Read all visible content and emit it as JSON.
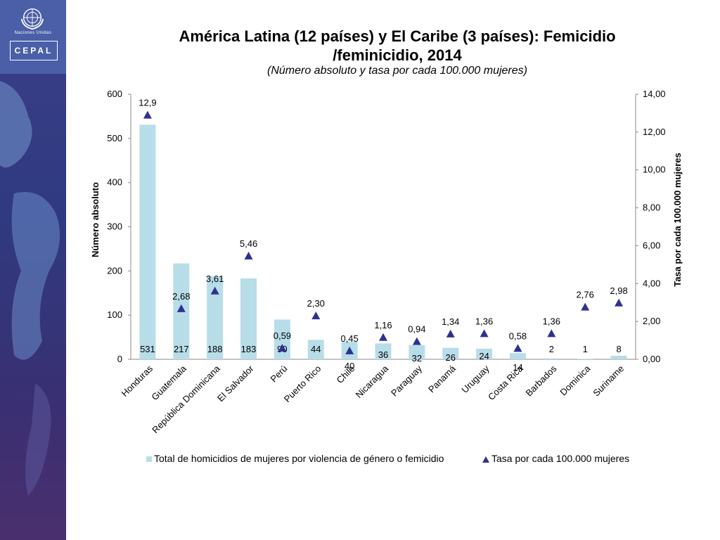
{
  "branding": {
    "un_text": "Naciones Unidas",
    "cepal_text": "CEPAL"
  },
  "colors": {
    "bar": "#b7dde8",
    "marker": "#2e3192",
    "sidebar": "#3b3f86"
  },
  "chart_data": {
    "type": "bar",
    "title": "América Latina (12 países) y El Caribe (3 países): Femicidio /feminicidio, 2014",
    "title_line1": "América Latina (12 países) y El Caribe (3 países): Femicidio",
    "title_line2": "/feminicidio, 2014",
    "subtitle": "(Número absoluto y tasa por cada 100.000 mujeres)",
    "ylabel": "Número absoluto",
    "y2label": "Tasa por cada 100.000 mujeres",
    "ylim": [
      0,
      600
    ],
    "y2lim": [
      0,
      14
    ],
    "yticks": [
      "0",
      "100",
      "200",
      "300",
      "400",
      "500",
      "600"
    ],
    "y2ticks": [
      "0,00",
      "2,00",
      "4,00",
      "6,00",
      "8,00",
      "10,00",
      "12,00",
      "14,00"
    ],
    "categories": [
      "Honduras",
      "Guatemala",
      "República Dominicana",
      "El Salvador",
      "Perú",
      "Puerto Rico",
      "Chile",
      "Nicaragua",
      "Paraguay",
      "Panamá",
      "Uruguay",
      "Costa Rica",
      "Barbados",
      "Dominica",
      "Suriname"
    ],
    "series": [
      {
        "name": "Total de homicidios de mujeres por violencia de género o femicidio",
        "type": "bar",
        "axis": "left",
        "values": [
          531,
          217,
          188,
          183,
          90,
          44,
          40,
          36,
          32,
          26,
          24,
          14,
          2,
          1,
          8
        ],
        "labels": [
          "531",
          "217",
          "188",
          "183",
          "90",
          "44",
          "40",
          "36",
          "32",
          "26",
          "24",
          "14",
          "2",
          "1",
          "8"
        ]
      },
      {
        "name": "Tasa por cada 100.000 mujeres",
        "type": "scatter",
        "axis": "right",
        "marker": "triangle",
        "values": [
          12.9,
          2.68,
          3.61,
          5.46,
          0.59,
          2.3,
          0.45,
          1.16,
          0.94,
          1.34,
          1.36,
          0.58,
          1.36,
          2.76,
          2.98
        ],
        "labels": [
          "12,9",
          "2,68",
          "3,61",
          "5,46",
          "0,59",
          "2,30",
          "0,45",
          "1,16",
          "0,94",
          "1,34",
          "1,36",
          "0,58",
          "1,36",
          "2,76",
          "2,98"
        ]
      }
    ],
    "legend_position": "bottom",
    "grid": false
  }
}
